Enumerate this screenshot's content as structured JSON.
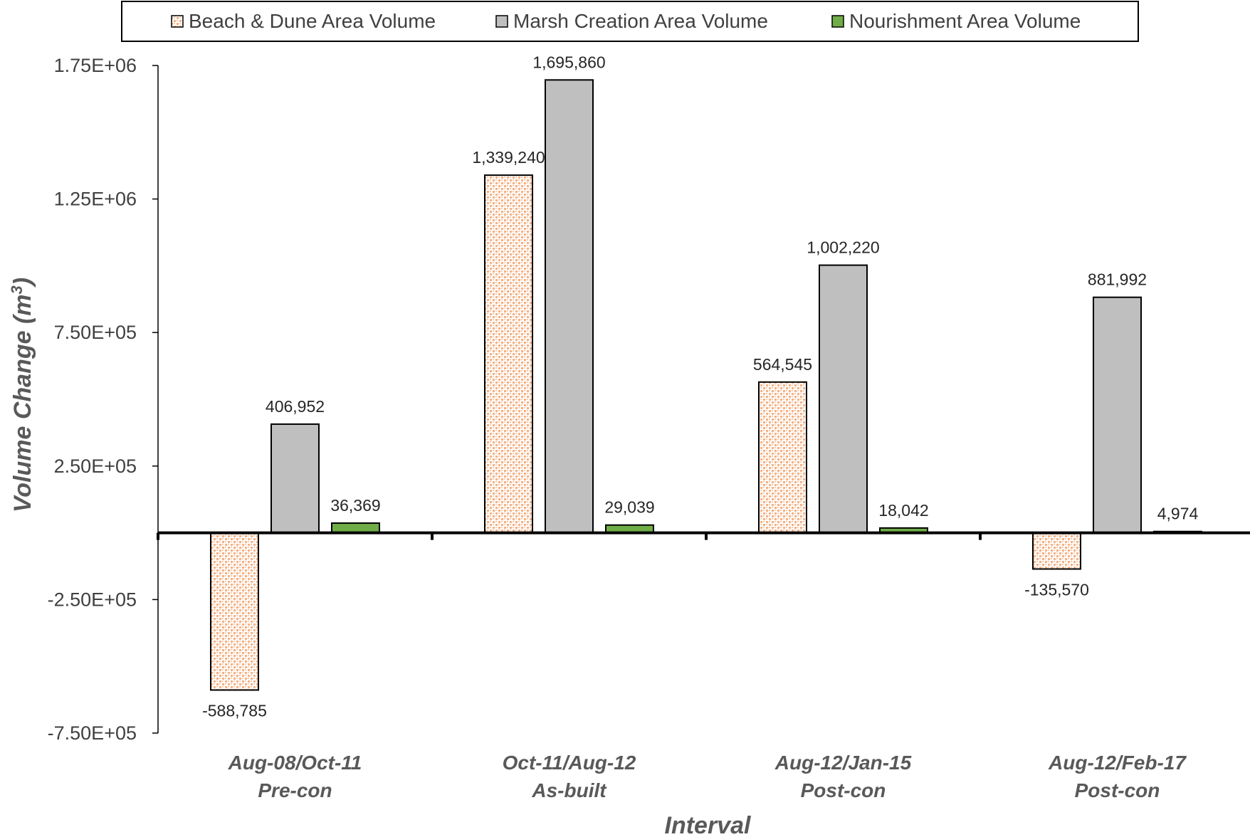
{
  "chart_data": {
    "type": "bar",
    "categories": [
      [
        "Aug-08/Oct-11",
        "Pre-con"
      ],
      [
        "Oct-11/Aug-12",
        "As-built"
      ],
      [
        "Aug-12/Jan-15",
        "Post-con"
      ],
      [
        "Aug-12/Feb-17",
        "Post-con"
      ]
    ],
    "series": [
      {
        "name": "Beach & Dune Area Volume",
        "color": "#f4b183",
        "pattern": "dotted",
        "values": [
          -588785,
          1339240,
          564545,
          -135570
        ],
        "labels": [
          "-588,785",
          "1,339,240",
          "564,545",
          "-135,570"
        ]
      },
      {
        "name": "Marsh Creation Area Volume",
        "color": "#bfbfbf",
        "pattern": "solid",
        "values": [
          406952,
          1695860,
          1002220,
          881992
        ],
        "labels": [
          "406,952",
          "1,695,860",
          "1,002,220",
          "881,992"
        ]
      },
      {
        "name": "Nourishment Area Volume",
        "color": "#70ad47",
        "pattern": "solid",
        "values": [
          36369,
          29039,
          18042,
          4974
        ],
        "labels": [
          "36,369",
          "29,039",
          "18,042",
          "4,974"
        ]
      }
    ],
    "xlabel": "Interval",
    "ylabel_main": "Volume Change (m",
    "ylabel_sup": "3",
    "ylabel_end": ")",
    "ylim": [
      -750000,
      1750000
    ],
    "yticks": [
      -750000,
      -250000,
      250000,
      750000,
      1250000,
      1750000
    ],
    "ytick_labels": [
      "-7.50E+05",
      "-2.50E+05",
      "2.50E+05",
      "7.50E+05",
      "1.25E+06",
      "1.75E+06"
    ],
    "legend_position": "top",
    "grid": false
  }
}
